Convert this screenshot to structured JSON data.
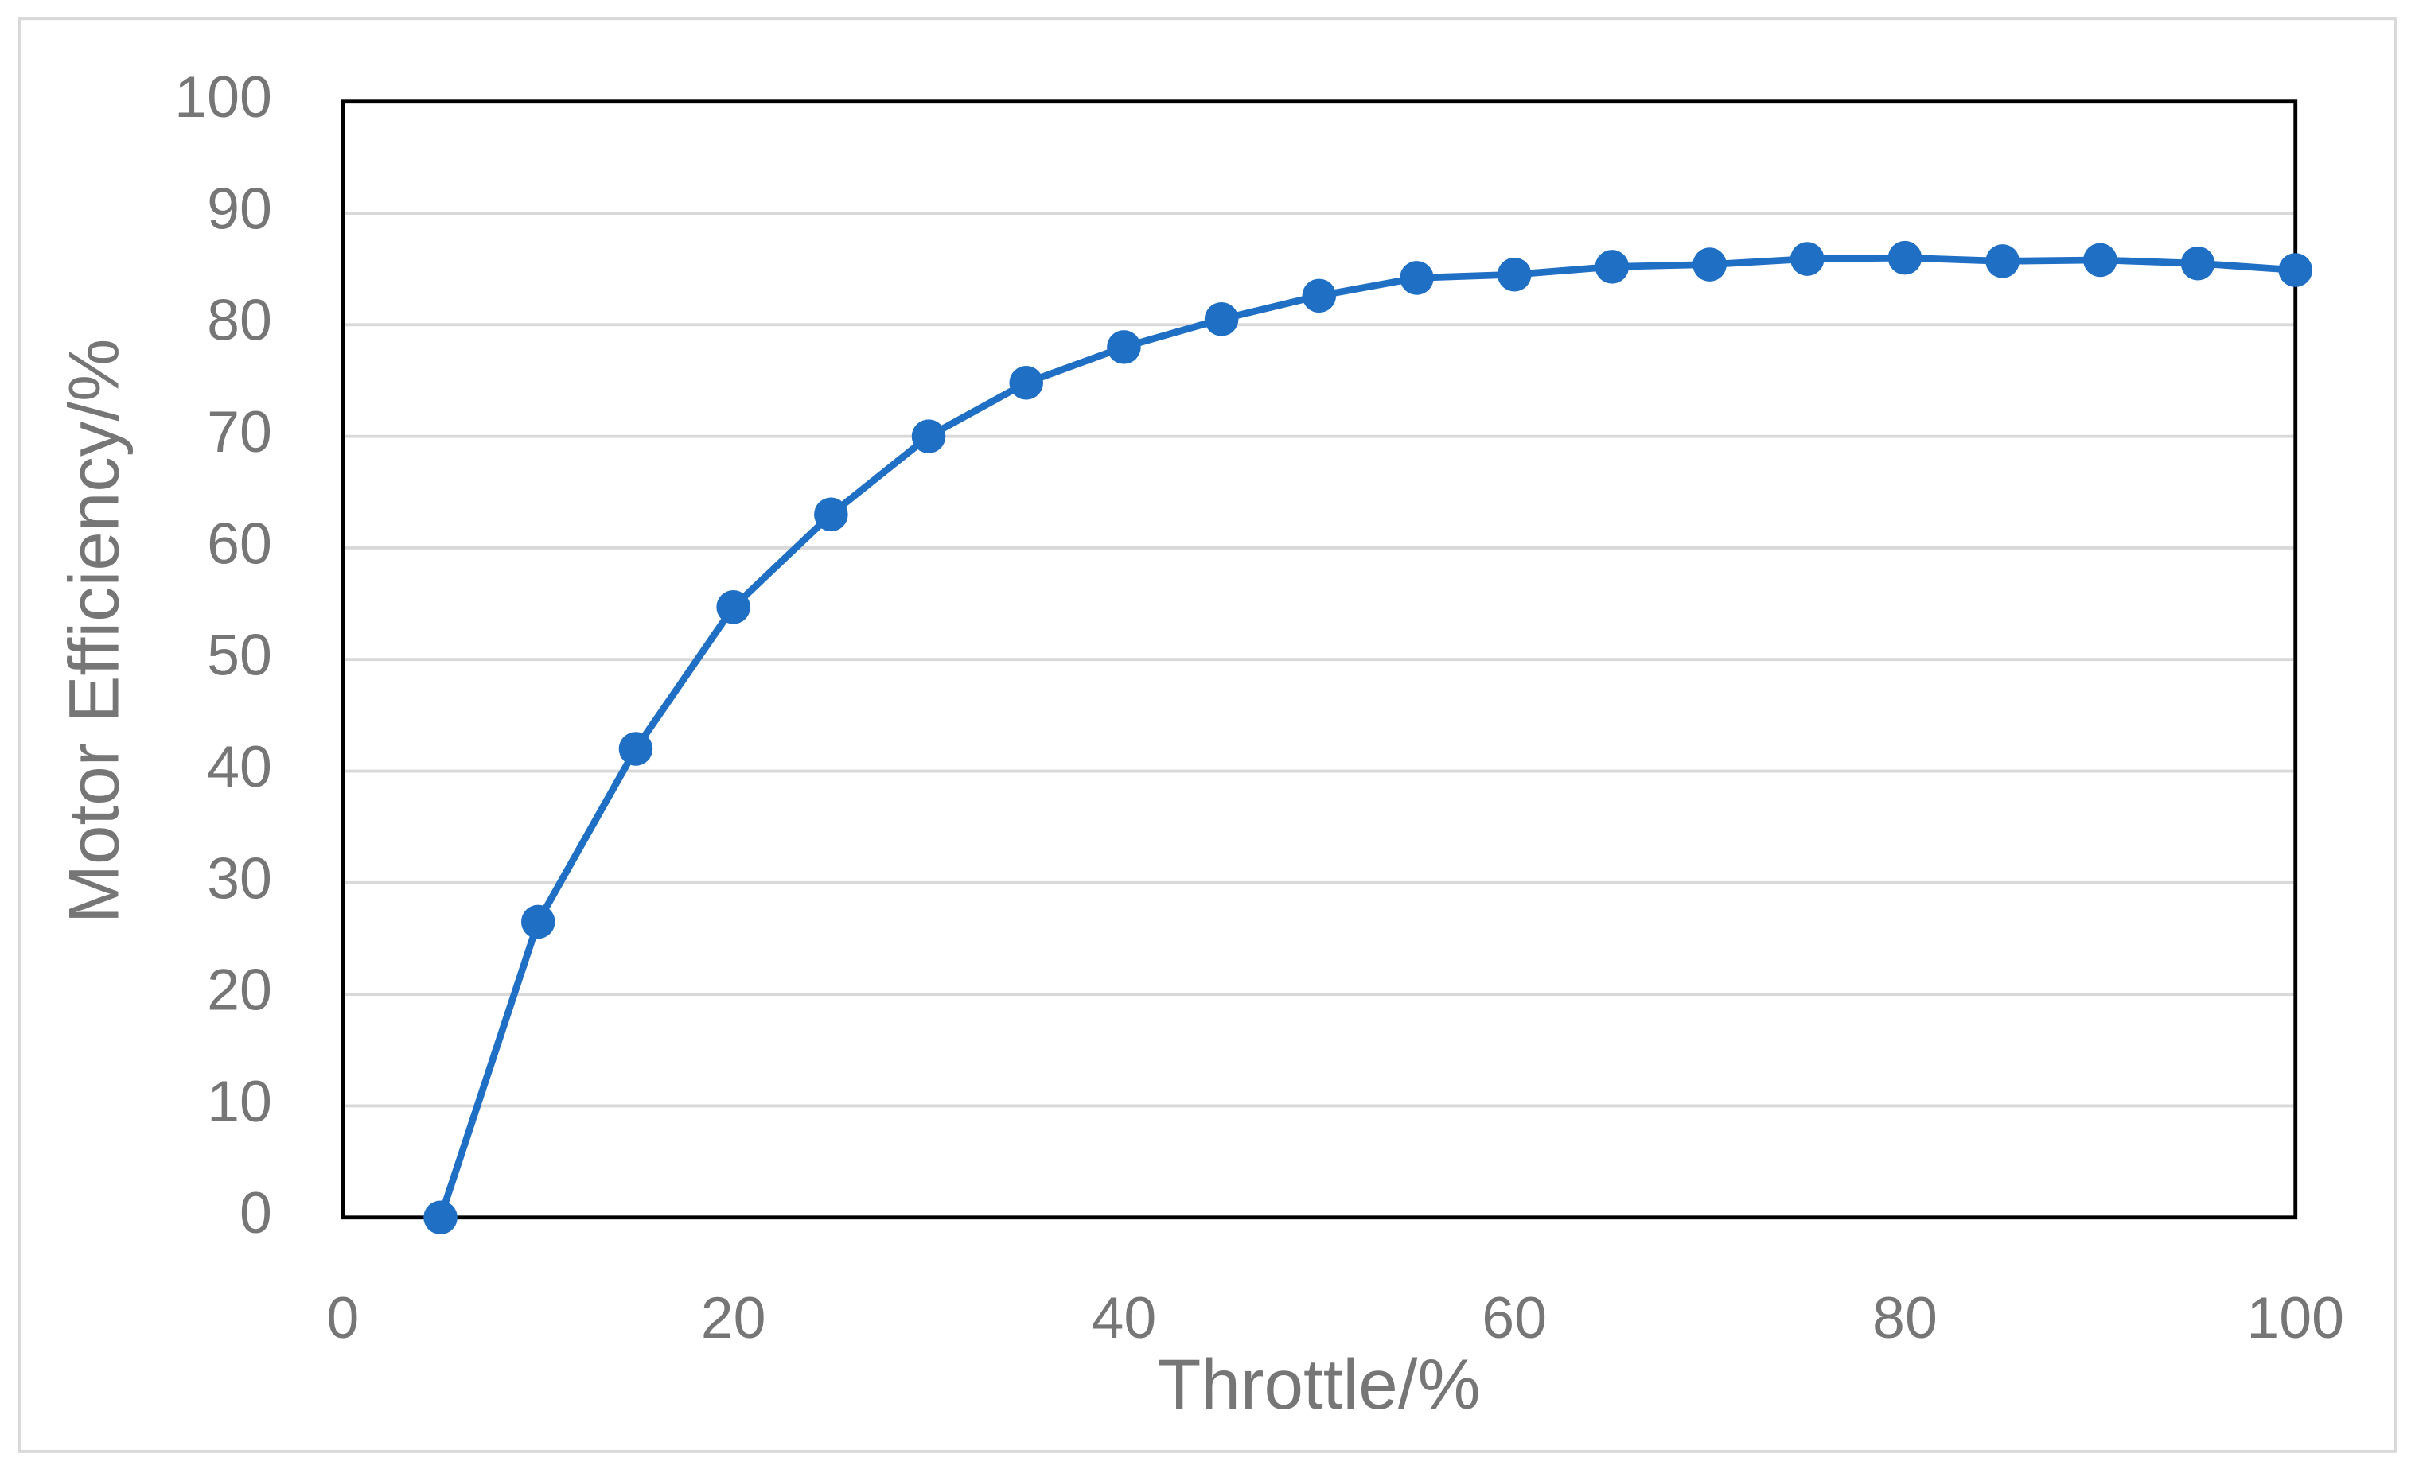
{
  "chart_data": {
    "type": "line",
    "x_label": "Throttle/%",
    "y_label": "Motor Efficiency/%",
    "x": [
      5,
      10,
      15,
      20,
      25,
      30,
      35,
      40,
      45,
      50,
      55,
      60,
      65,
      70,
      75,
      80,
      85,
      90,
      95,
      100
    ],
    "series": [
      {
        "color": "#1f6fc5",
        "values": [
          0,
          26.5,
          42,
          54.7,
          63,
          70,
          74.8,
          78,
          80.5,
          82.6,
          84.2,
          84.5,
          85.2,
          85.4,
          85.9,
          86,
          85.7,
          85.8,
          85.5,
          84.9
        ]
      }
    ],
    "xlim": [
      0,
      100
    ],
    "xticks": [
      0,
      20,
      40,
      60,
      80,
      100
    ],
    "ylim": [
      0,
      100
    ],
    "yticks": [
      0,
      10,
      20,
      30,
      40,
      50,
      60,
      70,
      80,
      90,
      100
    ],
    "grid": true
  }
}
